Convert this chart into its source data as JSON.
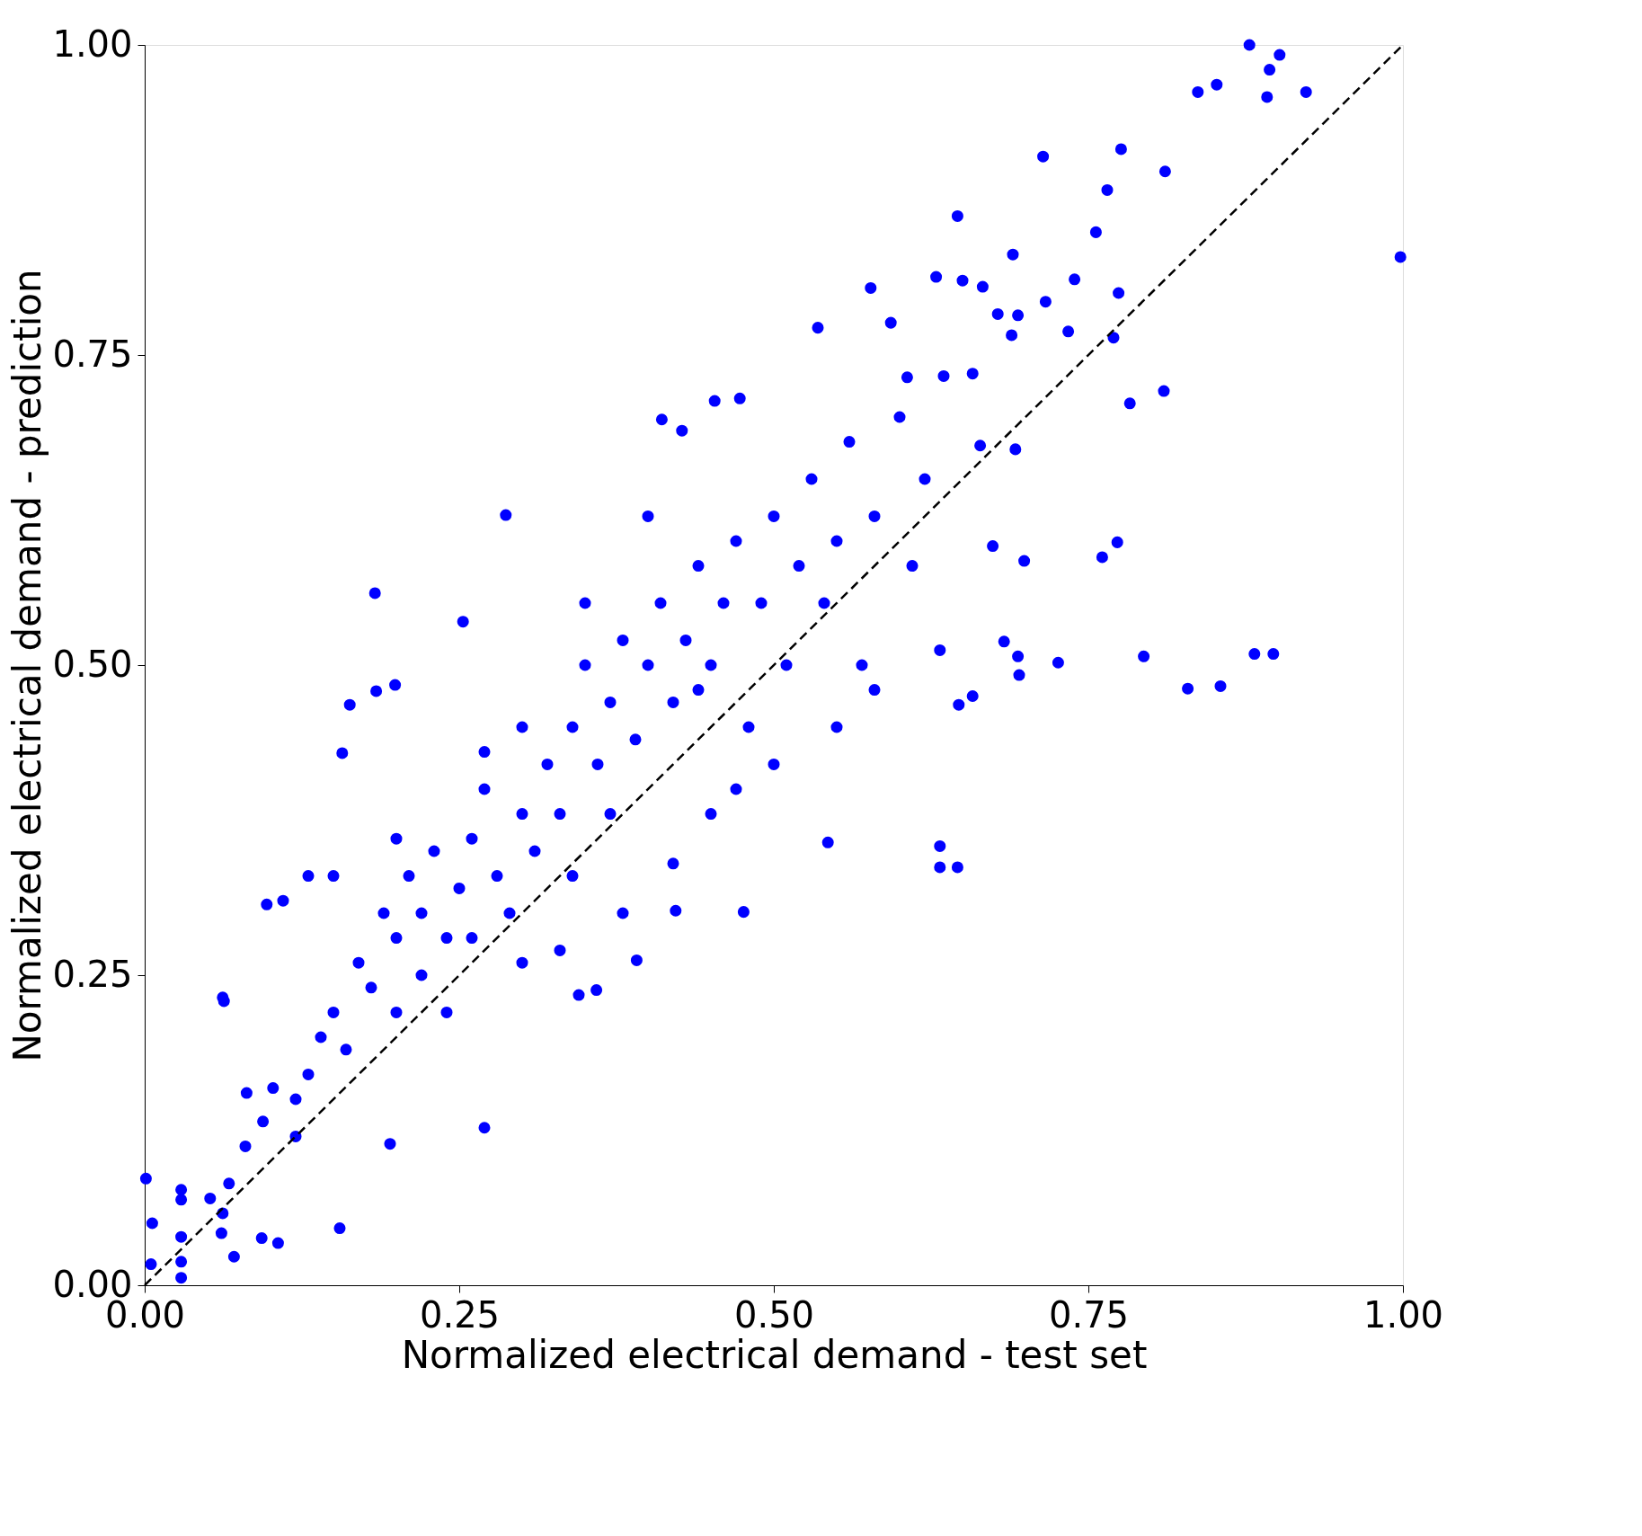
{
  "chart_data": {
    "type": "scatter",
    "xlabel": "Normalized electrical demand - test set",
    "ylabel": "Normalized electrical demand - prediction",
    "xlim": [
      0,
      1
    ],
    "ylim": [
      0,
      1
    ],
    "xticks": [
      {
        "value": 0,
        "label": "0.00"
      },
      {
        "value": 0.25,
        "label": "0.25"
      },
      {
        "value": 0.5,
        "label": "0.50"
      },
      {
        "value": 0.75,
        "label": "0.75"
      },
      {
        "value": 1,
        "label": "1.00"
      }
    ],
    "yticks": [
      {
        "value": 0,
        "label": "0.00"
      },
      {
        "value": 0.25,
        "label": "0.25"
      },
      {
        "value": 0.5,
        "label": "0.50"
      },
      {
        "value": 0.75,
        "label": "0.75"
      },
      {
        "value": 1,
        "label": "1.00"
      }
    ],
    "grid": false,
    "series": [
      {
        "marker": "circle",
        "color": "#0000ff",
        "x": [
          0.878,
          0.902,
          0.894,
          0.892,
          0.923,
          0.837,
          0.852,
          0.714,
          0.776,
          0.765,
          0.811,
          0.998,
          0.756,
          0.646,
          0.69,
          0.739,
          0.629,
          0.65,
          0.666,
          0.774,
          0.577,
          0.716,
          0.694,
          0.678,
          0.689,
          0.734,
          0.77,
          0.593,
          0.535,
          0.783,
          0.81,
          0.658,
          0.635,
          0.606,
          0.473,
          0.453,
          0.411,
          0.427,
          0.692,
          0.664,
          0.674,
          0.699,
          0.761,
          0.773,
          0.632,
          0.683,
          0.694,
          0.695,
          0.726,
          0.794,
          0.882,
          0.897,
          0.829,
          0.855,
          0.658,
          0.647,
          0.632,
          0.632,
          0.646,
          0.543,
          0.476,
          0.422,
          0.391,
          0.359,
          0.345,
          0.27,
          0.195,
          0.155,
          0.287,
          0.183,
          0.253,
          0.199,
          0.184,
          0.163,
          0.157,
          0.062,
          0.063,
          0.097,
          0.001,
          0.006,
          0.005,
          0.029,
          0.029,
          0.029,
          0.029,
          0.029,
          0.071,
          0.106,
          0.093,
          0.061,
          0.062,
          0.052,
          0.067,
          0.08,
          0.094,
          0.102,
          0.081,
          0.12,
          0.12,
          0.13,
          0.14,
          0.15,
          0.16,
          0.17,
          0.18,
          0.19,
          0.2,
          0.2,
          0.21,
          0.22,
          0.22,
          0.23,
          0.24,
          0.24,
          0.25,
          0.26,
          0.26,
          0.27,
          0.28,
          0.29,
          0.3,
          0.3,
          0.31,
          0.32,
          0.33,
          0.34,
          0.34,
          0.35,
          0.36,
          0.37,
          0.37,
          0.38,
          0.39,
          0.4,
          0.41,
          0.42,
          0.43,
          0.44,
          0.45,
          0.46,
          0.47,
          0.48,
          0.49,
          0.5,
          0.51,
          0.52,
          0.53,
          0.54,
          0.55,
          0.56,
          0.57,
          0.58,
          0.6,
          0.61,
          0.62,
          0.15,
          0.13,
          0.11,
          0.2,
          0.27,
          0.35,
          0.4,
          0.44,
          0.47,
          0.5,
          0.38,
          0.33,
          0.3,
          0.42,
          0.55,
          0.58,
          0.45
        ],
        "values": [
          1.0,
          0.992,
          0.98,
          0.958,
          0.962,
          0.962,
          0.968,
          0.91,
          0.916,
          0.883,
          0.898,
          0.829,
          0.849,
          0.862,
          0.831,
          0.811,
          0.813,
          0.81,
          0.805,
          0.8,
          0.804,
          0.793,
          0.782,
          0.783,
          0.766,
          0.769,
          0.764,
          0.776,
          0.772,
          0.711,
          0.721,
          0.735,
          0.733,
          0.732,
          0.715,
          0.713,
          0.698,
          0.689,
          0.674,
          0.677,
          0.596,
          0.584,
          0.587,
          0.599,
          0.512,
          0.519,
          0.507,
          0.492,
          0.502,
          0.507,
          0.509,
          0.509,
          0.481,
          0.483,
          0.475,
          0.468,
          0.354,
          0.337,
          0.337,
          0.357,
          0.301,
          0.302,
          0.262,
          0.238,
          0.234,
          0.127,
          0.114,
          0.046,
          0.621,
          0.558,
          0.535,
          0.484,
          0.479,
          0.468,
          0.429,
          0.232,
          0.229,
          0.307,
          0.086,
          0.05,
          0.017,
          0.077,
          0.069,
          0.039,
          0.019,
          0.006,
          0.023,
          0.034,
          0.038,
          0.042,
          0.058,
          0.07,
          0.082,
          0.112,
          0.132,
          0.159,
          0.155,
          0.12,
          0.15,
          0.17,
          0.2,
          0.22,
          0.19,
          0.26,
          0.24,
          0.3,
          0.28,
          0.22,
          0.33,
          0.25,
          0.3,
          0.35,
          0.28,
          0.22,
          0.32,
          0.36,
          0.28,
          0.4,
          0.33,
          0.3,
          0.38,
          0.45,
          0.35,
          0.42,
          0.38,
          0.45,
          0.33,
          0.5,
          0.42,
          0.38,
          0.47,
          0.52,
          0.44,
          0.5,
          0.55,
          0.47,
          0.52,
          0.58,
          0.5,
          0.55,
          0.6,
          0.45,
          0.55,
          0.62,
          0.5,
          0.58,
          0.65,
          0.55,
          0.6,
          0.68,
          0.5,
          0.62,
          0.7,
          0.58,
          0.65,
          0.33,
          0.33,
          0.31,
          0.36,
          0.43,
          0.55,
          0.62,
          0.48,
          0.4,
          0.42,
          0.3,
          0.27,
          0.26,
          0.34,
          0.45,
          0.48,
          0.38
        ]
      },
      {
        "type": "line",
        "color": "#000000",
        "line_style": "dashed",
        "x": [
          0,
          1
        ],
        "values": [
          0,
          1
        ]
      }
    ]
  }
}
